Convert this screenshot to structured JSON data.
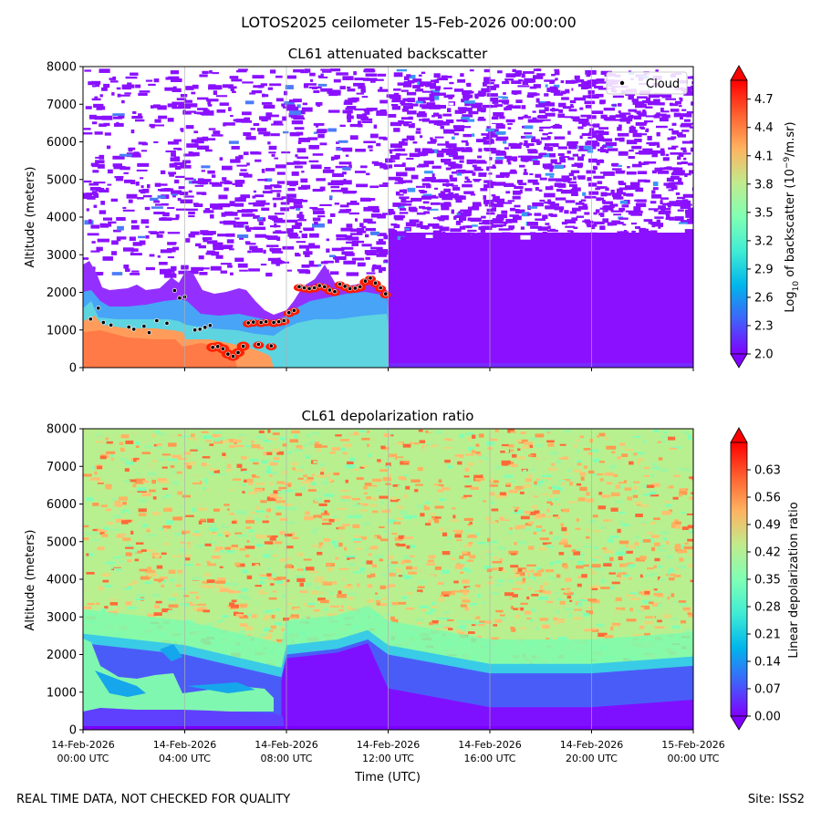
{
  "suptitle": "LOTOS2025 ceilometer 15-Feb-2026 00:00:00",
  "footer": {
    "left": "REAL TIME DATA, NOT CHECKED FOR QUALITY",
    "right": "Site: ISS2"
  },
  "colors": {
    "cloud_marker": "#000000",
    "cloud_edge": "#ffffff",
    "low_boundary_depol": "#8000ff",
    "grid": "#b0b0b0"
  },
  "chart_data": [
    {
      "type": "heatmap",
      "title": "CL61 attenuated backscatter",
      "ylabel": "Altitude (meters)",
      "xlabel": "",
      "ylim": [
        0,
        8000
      ],
      "yticks": [
        0,
        1000,
        2000,
        3000,
        4000,
        5000,
        6000,
        7000,
        8000
      ],
      "xlim_hours": [
        0,
        24
      ],
      "xticks_hours": [
        0,
        4,
        8,
        12,
        16,
        20,
        24
      ],
      "grid": "vertical",
      "legend": {
        "position": "top-right",
        "label": "Cloud"
      },
      "colorbar": {
        "label_main": "Log",
        "label_sub": "10",
        "label_rest": " of backscatter (10",
        "label_sup": "−9",
        "label_end": "/m.sr)",
        "min": 2.0,
        "max": 4.9,
        "ticks": [
          "2.0",
          "2.3",
          "2.6",
          "2.9",
          "3.2",
          "3.5",
          "3.8",
          "4.1",
          "4.4",
          "4.7"
        ],
        "extend": "both"
      },
      "cloud_base": [
        {
          "t": 0.3,
          "alt": 1290
        },
        {
          "t": 0.6,
          "alt": 1580
        },
        {
          "t": 0.8,
          "alt": 1200
        },
        {
          "t": 1.1,
          "alt": 1130
        },
        {
          "t": 1.8,
          "alt": 1080
        },
        {
          "t": 2.0,
          "alt": 1020
        },
        {
          "t": 2.4,
          "alt": 1100
        },
        {
          "t": 2.6,
          "alt": 930
        },
        {
          "t": 2.9,
          "alt": 1250
        },
        {
          "t": 3.3,
          "alt": 1180
        },
        {
          "t": 3.6,
          "alt": 2050
        },
        {
          "t": 3.8,
          "alt": 1850
        },
        {
          "t": 4.0,
          "alt": 1880
        },
        {
          "t": 4.4,
          "alt": 1000
        },
        {
          "t": 4.6,
          "alt": 1020
        },
        {
          "t": 4.8,
          "alt": 1070
        },
        {
          "t": 5.0,
          "alt": 1120
        },
        {
          "t": 5.1,
          "alt": 540
        },
        {
          "t": 5.3,
          "alt": 560
        },
        {
          "t": 5.5,
          "alt": 500
        },
        {
          "t": 5.7,
          "alt": 360
        },
        {
          "t": 5.9,
          "alt": 300
        },
        {
          "t": 6.1,
          "alt": 400
        },
        {
          "t": 6.3,
          "alt": 570
        },
        {
          "t": 6.5,
          "alt": 1190
        },
        {
          "t": 6.7,
          "alt": 1210
        },
        {
          "t": 6.9,
          "alt": 620
        },
        {
          "t": 7.0,
          "alt": 1200
        },
        {
          "t": 7.2,
          "alt": 1220
        },
        {
          "t": 7.4,
          "alt": 580
        },
        {
          "t": 7.5,
          "alt": 1200
        },
        {
          "t": 7.7,
          "alt": 1220
        },
        {
          "t": 7.9,
          "alt": 1250
        },
        {
          "t": 8.1,
          "alt": 1460
        },
        {
          "t": 8.3,
          "alt": 1520
        },
        {
          "t": 8.5,
          "alt": 2150
        },
        {
          "t": 8.7,
          "alt": 2120
        },
        {
          "t": 8.9,
          "alt": 2100
        },
        {
          "t": 9.1,
          "alt": 2120
        },
        {
          "t": 9.3,
          "alt": 2180
        },
        {
          "t": 9.5,
          "alt": 2150
        },
        {
          "t": 9.7,
          "alt": 2060
        },
        {
          "t": 9.9,
          "alt": 2020
        },
        {
          "t": 10.1,
          "alt": 2220
        },
        {
          "t": 10.3,
          "alt": 2160
        },
        {
          "t": 10.5,
          "alt": 2100
        },
        {
          "t": 10.7,
          "alt": 2110
        },
        {
          "t": 10.9,
          "alt": 2150
        },
        {
          "t": 11.1,
          "alt": 2300
        },
        {
          "t": 11.3,
          "alt": 2380
        },
        {
          "t": 11.5,
          "alt": 2250
        },
        {
          "t": 11.7,
          "alt": 2120
        },
        {
          "t": 11.9,
          "alt": 1960
        }
      ]
    },
    {
      "type": "heatmap",
      "title": "CL61 depolarization ratio",
      "ylabel": "Altitude (meters)",
      "xlabel": "Time (UTC)",
      "ylim": [
        0,
        8000
      ],
      "yticks": [
        0,
        1000,
        2000,
        3000,
        4000,
        5000,
        6000,
        7000,
        8000
      ],
      "xlim_hours": [
        0,
        24
      ],
      "xticks_hours": [
        0,
        4,
        8,
        12,
        16,
        20,
        24
      ],
      "xtick_labels": [
        [
          "14-Feb-2026",
          "00:00 UTC"
        ],
        [
          "14-Feb-2026",
          "04:00 UTC"
        ],
        [
          "14-Feb-2026",
          "08:00 UTC"
        ],
        [
          "14-Feb-2026",
          "12:00 UTC"
        ],
        [
          "14-Feb-2026",
          "16:00 UTC"
        ],
        [
          "14-Feb-2026",
          "20:00 UTC"
        ],
        [
          "15-Feb-2026",
          "00:00 UTC"
        ]
      ],
      "grid": "vertical",
      "colorbar": {
        "label": "Linear depolarization ratio",
        "min": 0.0,
        "max": 0.7,
        "ticks": [
          "0.00",
          "0.07",
          "0.14",
          "0.21",
          "0.28",
          "0.35",
          "0.42",
          "0.49",
          "0.56",
          "0.63"
        ],
        "extend": "both"
      },
      "boundary_layer_top": [
        {
          "t": 0,
          "alt": 2300
        },
        {
          "t": 4,
          "alt": 2000
        },
        {
          "t": 7.8,
          "alt": 1400
        },
        {
          "t": 8,
          "alt": 2000
        },
        {
          "t": 10,
          "alt": 2150
        },
        {
          "t": 11.2,
          "alt": 2400
        },
        {
          "t": 12,
          "alt": 2000
        },
        {
          "t": 16,
          "alt": 1500
        },
        {
          "t": 20,
          "alt": 1500
        },
        {
          "t": 24,
          "alt": 1700
        }
      ]
    }
  ]
}
